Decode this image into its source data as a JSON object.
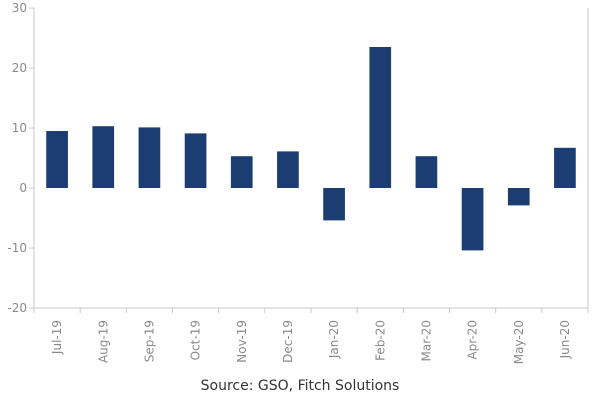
{
  "chart_data": {
    "type": "bar",
    "title": "",
    "xlabel": "",
    "ylabel": "",
    "categories": [
      "Jul-19",
      "Aug-19",
      "Sep-19",
      "Oct-19",
      "Nov-19",
      "Dec-19",
      "Jan-20",
      "Feb-20",
      "Mar-20",
      "Apr-20",
      "May-20",
      "Jun-20"
    ],
    "values": [
      9.5,
      10.3,
      10.1,
      9.1,
      5.3,
      6.1,
      -5.4,
      23.5,
      5.3,
      -10.4,
      -2.9,
      6.7
    ],
    "ylim": [
      -20,
      30
    ],
    "yticks": [
      -20,
      -10,
      0,
      10,
      20,
      30
    ],
    "grid": false,
    "legend": "none",
    "colors": {
      "bar": "#1b3d72",
      "axis": "#c8c8c8",
      "tick_text": "#8a8a8a"
    }
  },
  "source": "Source: GSO, Fitch Solutions"
}
